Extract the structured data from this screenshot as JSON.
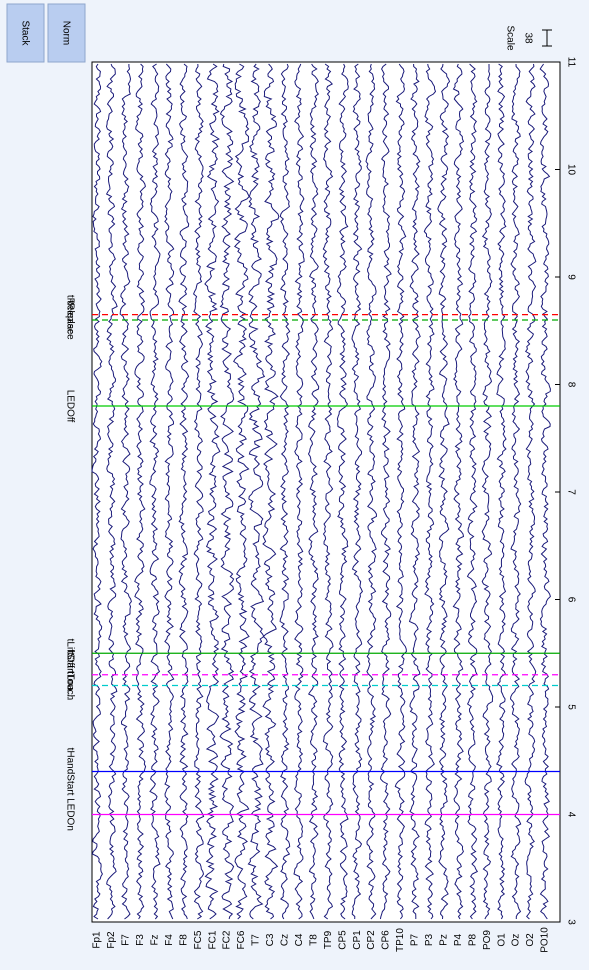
{
  "toolbar": {
    "buttons": [
      "Stack",
      "Norm"
    ]
  },
  "scale": {
    "label": "Scale",
    "value": 38
  },
  "plot": {
    "xlim": [
      3,
      11
    ],
    "xticks": [
      3,
      4,
      5,
      6,
      7,
      8,
      9,
      10,
      11
    ],
    "channels": [
      "Fp1",
      "Fp2",
      "F7",
      "F3",
      "Fz",
      "F4",
      "F8",
      "FC5",
      "FC1",
      "FC2",
      "FC6",
      "T7",
      "C3",
      "Cz",
      "C4",
      "T8",
      "TP9",
      "CP5",
      "CP1",
      "CP2",
      "CP6",
      "TP10",
      "P7",
      "P3",
      "Pz",
      "P4",
      "P8",
      "PO9",
      "O1",
      "Oz",
      "O2",
      "PO10"
    ],
    "events": [
      {
        "time": 4.0,
        "label": "LEDOn",
        "color": "#ff00ff",
        "dashed": false
      },
      {
        "time": 4.4,
        "label": "tHandStart",
        "color": "#0000ff",
        "dashed": false
      },
      {
        "time": 5.2,
        "label": "tTouch",
        "color": "#00cccc",
        "dashed": true
      },
      {
        "time": 5.3,
        "label": "tStartLoa...",
        "color": "#ff00ff",
        "dashed": true
      },
      {
        "time": 5.5,
        "label": "tLiftOff",
        "color": "#00aa00",
        "dashed": false
      },
      {
        "time": 7.8,
        "label": "LEDOff",
        "color": "#00cc00",
        "dashed": false
      },
      {
        "time": 8.6,
        "label": "tReplace",
        "color": "#00aa00",
        "dashed": true
      },
      {
        "time": 8.65,
        "label": "tRelease",
        "color": "#ff0000",
        "dashed": true
      }
    ]
  }
}
